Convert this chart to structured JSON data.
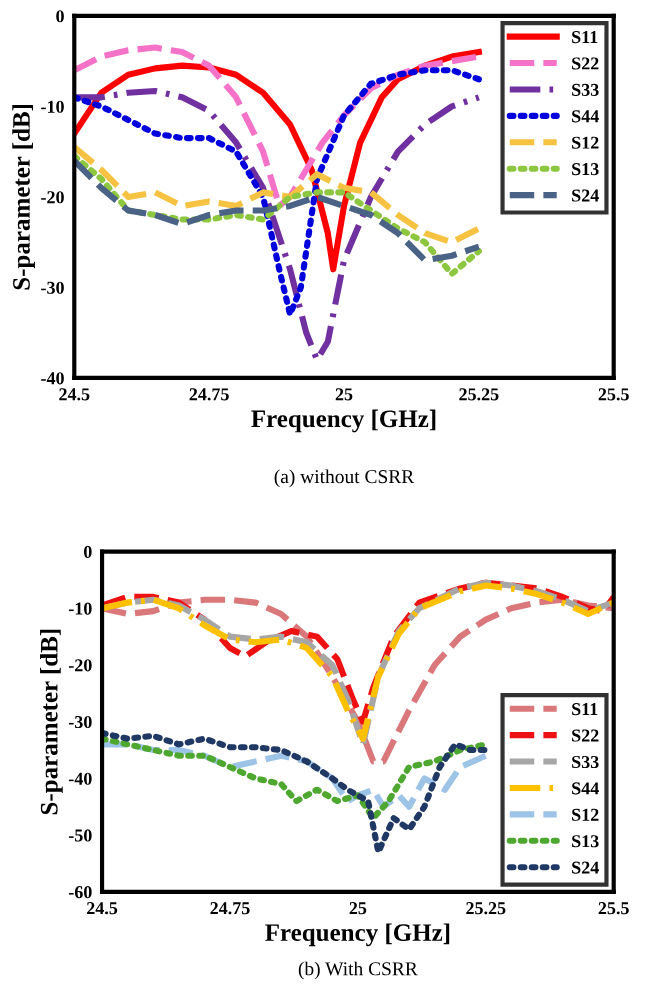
{
  "chart_data": [
    {
      "type": "line",
      "title": "(a) without CSRR",
      "xlabel": "Frequency [GHz]",
      "ylabel": "S-parameter [dB]",
      "xlim": [
        24.5,
        25.5
      ],
      "xticks": [
        24.5,
        24.75,
        25,
        25.25,
        25.5
      ],
      "ylim": [
        -40,
        0
      ],
      "yticks": [
        -40,
        -30,
        -20,
        -10,
        0
      ],
      "grid": false,
      "legend": "top right",
      "series": [
        {
          "name": "S11",
          "color": "#ff0000",
          "line_style": "solid",
          "x": [
            24.5,
            24.55,
            24.6,
            24.65,
            24.7,
            24.75,
            24.8,
            24.85,
            24.9,
            24.94,
            24.97,
            24.98,
            25.0,
            25.03,
            25.07,
            25.1,
            25.15,
            25.2,
            25.25
          ],
          "values": [
            -13,
            -8.5,
            -6.5,
            -5.8,
            -5.5,
            -5.7,
            -6.5,
            -8.5,
            -12,
            -17,
            -24,
            -28,
            -21,
            -14,
            -9,
            -7,
            -5.5,
            -4.5,
            -4
          ]
        },
        {
          "name": "S22",
          "color": "#f472c8",
          "line_style": "dashed",
          "x": [
            24.5,
            24.55,
            24.6,
            24.65,
            24.7,
            24.75,
            24.8,
            24.85,
            24.88,
            24.9,
            24.93,
            24.96,
            25.0,
            25.05,
            25.1,
            25.15,
            25.2,
            25.25
          ],
          "values": [
            -6,
            -4.5,
            -3.8,
            -3.5,
            -4,
            -5.5,
            -9,
            -15,
            -21,
            -20,
            -17,
            -14,
            -11,
            -8,
            -6.5,
            -5.5,
            -5,
            -4.5
          ]
        },
        {
          "name": "S33",
          "color": "#7030a0",
          "line_style": "dashdot",
          "x": [
            24.5,
            24.55,
            24.6,
            24.65,
            24.7,
            24.75,
            24.8,
            24.85,
            24.9,
            24.93,
            24.95,
            24.97,
            25.0,
            25.05,
            25.1,
            25.15,
            25.2,
            25.25
          ],
          "values": [
            -9,
            -9,
            -8.5,
            -8.3,
            -9,
            -10.5,
            -14,
            -19,
            -28,
            -35,
            -38,
            -36,
            -27,
            -20,
            -15,
            -12,
            -10,
            -9
          ]
        },
        {
          "name": "S44",
          "color": "#0000dd",
          "line_style": "dotted",
          "x": [
            24.5,
            24.55,
            24.6,
            24.65,
            24.7,
            24.75,
            24.8,
            24.85,
            24.88,
            24.9,
            24.92,
            24.95,
            25.0,
            25.05,
            25.1,
            25.15,
            25.2,
            25.25
          ],
          "values": [
            -9,
            -10,
            -11.5,
            -13,
            -13.5,
            -13.5,
            -15,
            -20,
            -28,
            -33,
            -30,
            -18,
            -11,
            -7.5,
            -6.5,
            -6,
            -6,
            -7
          ]
        },
        {
          "name": "S12",
          "color": "#f5c242",
          "line_style": "dashed",
          "x": [
            24.5,
            24.55,
            24.6,
            24.65,
            24.7,
            24.75,
            24.8,
            24.85,
            24.9,
            24.95,
            25.0,
            25.05,
            25.1,
            25.15,
            25.2,
            25.25
          ],
          "values": [
            -14.5,
            -17,
            -20,
            -19.5,
            -21,
            -20.5,
            -21,
            -19.5,
            -20,
            -17.5,
            -19,
            -19.5,
            -22,
            -24,
            -25,
            -23.5
          ]
        },
        {
          "name": "S13",
          "color": "#8dc63f",
          "line_style": "dotted",
          "x": [
            24.5,
            24.55,
            24.6,
            24.65,
            24.7,
            24.75,
            24.8,
            24.85,
            24.9,
            24.95,
            25.0,
            25.05,
            25.1,
            25.15,
            25.2,
            25.25
          ],
          "values": [
            -15.5,
            -18,
            -21.5,
            -22,
            -22.5,
            -22.5,
            -22,
            -22.5,
            -20,
            -19.5,
            -19.5,
            -21.5,
            -23.5,
            -25,
            -28.5,
            -26
          ]
        },
        {
          "name": "S24",
          "color": "#4a6285",
          "line_style": "dashed",
          "x": [
            24.5,
            24.55,
            24.6,
            24.65,
            24.7,
            24.75,
            24.8,
            24.85,
            24.9,
            24.95,
            25.0,
            25.05,
            25.1,
            25.15,
            25.2,
            25.25
          ],
          "values": [
            -16,
            -19,
            -21.5,
            -22,
            -23,
            -22,
            -21.5,
            -21.5,
            -21,
            -20,
            -21,
            -22,
            -24,
            -27,
            -26.5,
            -25.5
          ]
        }
      ]
    },
    {
      "type": "line",
      "title": "(b) With CSRR",
      "xlabel": "Frequency [GHz]",
      "ylabel": "S-parameter [dB]",
      "xlim": [
        24.5,
        25.5
      ],
      "xticks": [
        24.5,
        24.75,
        25,
        25.25,
        25.5
      ],
      "ylim": [
        -60,
        0
      ],
      "yticks": [
        -60,
        -50,
        -40,
        -30,
        -20,
        -10,
        0
      ],
      "grid": false,
      "legend": "bottom right",
      "series": [
        {
          "name": "S11",
          "color": "#d9777a",
          "line_style": "dashed",
          "x": [
            24.5,
            24.55,
            24.6,
            24.65,
            24.7,
            24.75,
            24.8,
            24.85,
            24.9,
            24.95,
            25.0,
            25.03,
            25.05,
            25.1,
            25.15,
            25.2,
            25.25,
            25.3,
            25.35,
            25.4,
            25.45,
            25.5
          ],
          "values": [
            -10,
            -11,
            -10.5,
            -9,
            -8.5,
            -8.5,
            -9,
            -11,
            -15,
            -22,
            -30,
            -37,
            -37,
            -28,
            -20,
            -15,
            -12,
            -10,
            -9,
            -8.5,
            -9.5,
            -10
          ]
        },
        {
          "name": "S22",
          "color": "#ee1111",
          "line_style": "dashed",
          "x": [
            24.5,
            24.55,
            24.6,
            24.65,
            24.7,
            24.75,
            24.78,
            24.82,
            24.87,
            24.92,
            24.96,
            24.99,
            25.01,
            25.03,
            25.07,
            25.12,
            25.2,
            25.25,
            25.3,
            25.35,
            25.4,
            25.45,
            25.48,
            25.5
          ],
          "values": [
            -9.5,
            -8,
            -8,
            -9,
            -12,
            -17,
            -18.5,
            -16,
            -14,
            -15,
            -19,
            -26,
            -30,
            -24,
            -15,
            -9,
            -6.5,
            -5.5,
            -6,
            -6.5,
            -8,
            -10,
            -10.5,
            -8
          ]
        },
        {
          "name": "S33",
          "color": "#a6a6a6",
          "line_style": "dashed",
          "x": [
            24.5,
            24.55,
            24.6,
            24.65,
            24.7,
            24.75,
            24.8,
            24.85,
            24.9,
            24.95,
            24.98,
            25.01,
            25.04,
            25.08,
            25.12,
            25.2,
            25.25,
            25.3,
            25.35,
            25.4,
            25.45,
            25.5
          ],
          "values": [
            -10,
            -9,
            -8.5,
            -9.5,
            -12,
            -15,
            -15.5,
            -15,
            -16,
            -20,
            -26,
            -34,
            -22,
            -14,
            -10,
            -6.5,
            -5.5,
            -6,
            -7,
            -8.5,
            -10.5,
            -9
          ]
        },
        {
          "name": "S44",
          "color": "#ffc000",
          "line_style": "dashdot",
          "x": [
            24.5,
            24.55,
            24.6,
            24.65,
            24.7,
            24.75,
            24.8,
            24.85,
            24.9,
            24.95,
            24.98,
            25.01,
            25.04,
            25.08,
            25.12,
            25.2,
            25.25,
            25.3,
            25.35,
            25.4,
            25.45,
            25.5
          ],
          "values": [
            -10,
            -9,
            -8.5,
            -10,
            -13,
            -15.5,
            -16,
            -15.5,
            -17,
            -22,
            -28,
            -33,
            -22,
            -14.5,
            -10,
            -7,
            -6,
            -6.5,
            -7.5,
            -9,
            -11,
            -9
          ]
        },
        {
          "name": "S12",
          "color": "#9dc3e6",
          "line_style": "dashed",
          "x": [
            24.5,
            24.55,
            24.6,
            24.65,
            24.7,
            24.75,
            24.8,
            24.85,
            24.9,
            24.95,
            24.98,
            25.0,
            25.03,
            25.05,
            25.08,
            25.1,
            25.13,
            25.17,
            25.2,
            25.25
          ],
          "values": [
            -34,
            -34,
            -35,
            -35,
            -36,
            -38,
            -37,
            -36,
            -37,
            -40,
            -44,
            -43,
            -42,
            -45,
            -43,
            -45,
            -40,
            -42,
            -38,
            -36
          ]
        },
        {
          "name": "S13",
          "color": "#4ea72e",
          "line_style": "dotted",
          "x": [
            24.5,
            24.55,
            24.6,
            24.65,
            24.7,
            24.75,
            24.8,
            24.85,
            24.88,
            24.92,
            24.96,
            25.0,
            25.03,
            25.06,
            25.1,
            25.15,
            25.2,
            25.25
          ],
          "values": [
            -33,
            -34,
            -35,
            -36,
            -36,
            -38,
            -40,
            -41,
            -44,
            -42,
            -44,
            -43,
            -47,
            -44,
            -38,
            -37,
            -35,
            -34
          ]
        },
        {
          "name": "S24",
          "color": "#203864",
          "line_style": "dotted",
          "x": [
            24.5,
            24.55,
            24.6,
            24.65,
            24.7,
            24.75,
            24.8,
            24.85,
            24.9,
            24.95,
            24.98,
            25.02,
            25.04,
            25.07,
            25.1,
            25.13,
            25.16,
            25.19,
            25.22,
            25.25
          ],
          "values": [
            -32,
            -33,
            -32.5,
            -34,
            -33,
            -34.5,
            -34.5,
            -35,
            -37,
            -40,
            -42,
            -44,
            -53,
            -47,
            -49,
            -45,
            -38,
            -34,
            -35,
            -35
          ]
        }
      ]
    }
  ]
}
